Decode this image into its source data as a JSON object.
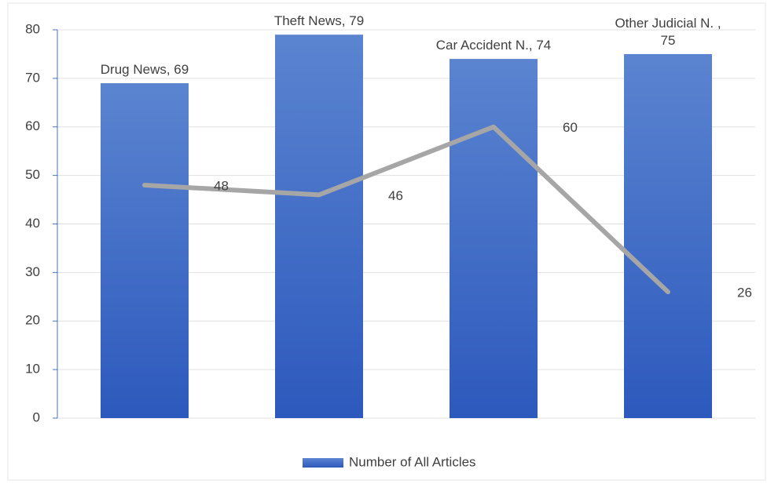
{
  "chart_data": {
    "type": "bar",
    "ylim": [
      0,
      80
    ],
    "yticks": [
      0,
      10,
      20,
      30,
      40,
      50,
      60,
      70,
      80
    ],
    "grid": true,
    "legend": "bottom",
    "series": [
      {
        "name": "Number of All Articles",
        "type": "bar",
        "color": "#3a66c4",
        "values": [
          69,
          79,
          74,
          75
        ],
        "value_labels": [
          "Drug News, 69",
          "Theft News, 79",
          "Car Accident N., 74",
          "Other Judicial N. , 75"
        ]
      },
      {
        "type": "line",
        "color": "#a6a6a6",
        "values": [
          48,
          46,
          60,
          26
        ]
      }
    ]
  }
}
